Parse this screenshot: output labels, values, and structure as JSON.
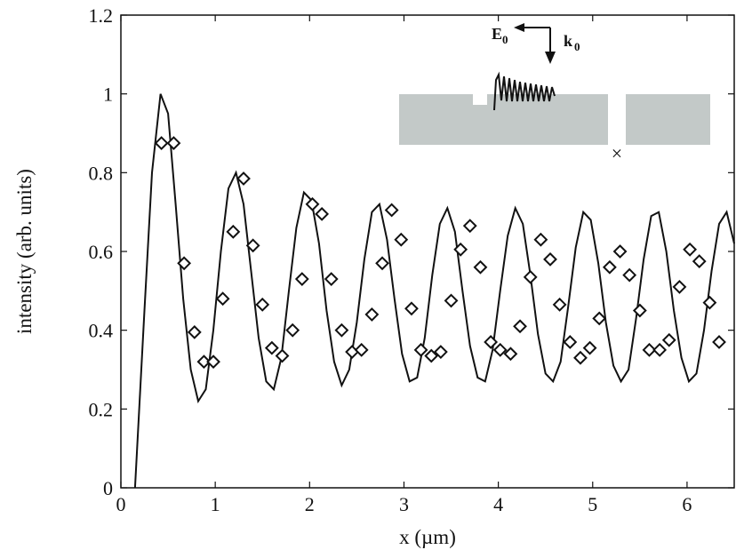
{
  "chart_data": {
    "type": "line",
    "title": "",
    "xlabel": "x (µm)",
    "ylabel": "intensity (arb. units)",
    "xlim": [
      0,
      6.5
    ],
    "ylim": [
      0,
      1.2
    ],
    "xticks": [
      0,
      1,
      2,
      3,
      4,
      5,
      6
    ],
    "yticks": [
      0,
      0.2,
      0.4,
      0.6,
      0.8,
      1,
      1.2
    ],
    "xtick_labels": [
      "0",
      "1",
      "2",
      "3",
      "4",
      "5",
      "6"
    ],
    "ytick_labels": [
      "0",
      "0.2",
      "0.4",
      "0.6",
      "0.8",
      "1",
      "1.2"
    ],
    "grid": false,
    "legend": "none",
    "series": [
      {
        "style": "line",
        "color": "#111111",
        "x": [
          0.15,
          0.25,
          0.33,
          0.42,
          0.5,
          0.58,
          0.66,
          0.74,
          0.82,
          0.9,
          0.98,
          1.06,
          1.14,
          1.22,
          1.3,
          1.38,
          1.46,
          1.54,
          1.62,
          1.7,
          1.78,
          1.86,
          1.94,
          2.02,
          2.1,
          2.18,
          2.26,
          2.34,
          2.42,
          2.5,
          2.58,
          2.66,
          2.74,
          2.82,
          2.9,
          2.98,
          3.06,
          3.14,
          3.22,
          3.3,
          3.38,
          3.46,
          3.54,
          3.62,
          3.7,
          3.78,
          3.86,
          3.94,
          4.02,
          4.1,
          4.18,
          4.26,
          4.34,
          4.42,
          4.5,
          4.58,
          4.66,
          4.74,
          4.82,
          4.9,
          4.98,
          5.06,
          5.14,
          5.22,
          5.3,
          5.38,
          5.46,
          5.54,
          5.62,
          5.7,
          5.78,
          5.86,
          5.94,
          6.02,
          6.1,
          6.18,
          6.26,
          6.34,
          6.42,
          6.5
        ],
        "y": [
          0.0,
          0.45,
          0.8,
          1.0,
          0.95,
          0.72,
          0.48,
          0.3,
          0.22,
          0.25,
          0.4,
          0.6,
          0.76,
          0.8,
          0.72,
          0.55,
          0.38,
          0.27,
          0.25,
          0.33,
          0.5,
          0.66,
          0.75,
          0.73,
          0.62,
          0.45,
          0.32,
          0.26,
          0.3,
          0.42,
          0.58,
          0.7,
          0.72,
          0.63,
          0.48,
          0.34,
          0.27,
          0.28,
          0.38,
          0.54,
          0.67,
          0.71,
          0.65,
          0.5,
          0.36,
          0.28,
          0.27,
          0.35,
          0.5,
          0.64,
          0.71,
          0.67,
          0.54,
          0.39,
          0.29,
          0.27,
          0.32,
          0.46,
          0.61,
          0.7,
          0.68,
          0.57,
          0.42,
          0.31,
          0.27,
          0.3,
          0.43,
          0.58,
          0.69,
          0.7,
          0.6,
          0.45,
          0.33,
          0.27,
          0.29,
          0.4,
          0.55,
          0.67,
          0.7,
          0.62
        ]
      },
      {
        "style": "markers",
        "marker": "diamond",
        "color": "#111111",
        "x": [
          0.43,
          0.56,
          0.67,
          0.78,
          0.88,
          0.98,
          1.08,
          1.19,
          1.3,
          1.4,
          1.5,
          1.6,
          1.71,
          1.82,
          1.92,
          2.03,
          2.13,
          2.23,
          2.34,
          2.45,
          2.55,
          2.66,
          2.77,
          2.87,
          2.97,
          3.08,
          3.18,
          3.29,
          3.39,
          3.5,
          3.6,
          3.7,
          3.81,
          3.92,
          4.02,
          4.13,
          4.23,
          4.34,
          4.45,
          4.55,
          4.65,
          4.76,
          4.87,
          4.97,
          5.07,
          5.18,
          5.29,
          5.39,
          5.5,
          5.6,
          5.71,
          5.81,
          5.92,
          6.03,
          6.13,
          6.24,
          6.34
        ],
        "y": [
          0.875,
          0.875,
          0.57,
          0.395,
          0.32,
          0.32,
          0.48,
          0.65,
          0.785,
          0.615,
          0.465,
          0.355,
          0.335,
          0.4,
          0.53,
          0.72,
          0.695,
          0.53,
          0.4,
          0.345,
          0.35,
          0.44,
          0.57,
          0.705,
          0.63,
          0.455,
          0.35,
          0.335,
          0.345,
          0.475,
          0.605,
          0.665,
          0.56,
          0.37,
          0.35,
          0.34,
          0.41,
          0.535,
          0.63,
          0.58,
          0.465,
          0.37,
          0.33,
          0.355,
          0.43,
          0.56,
          0.6,
          0.54,
          0.45,
          0.35,
          0.35,
          0.375,
          0.51,
          0.605,
          0.575,
          0.47,
          0.37
        ]
      }
    ]
  },
  "inset": {
    "e_label": "E",
    "e_sub": "0",
    "k_label": "k",
    "k_sub": "0",
    "slab_color": "#c3c9c8",
    "cross_symbol": "×"
  }
}
